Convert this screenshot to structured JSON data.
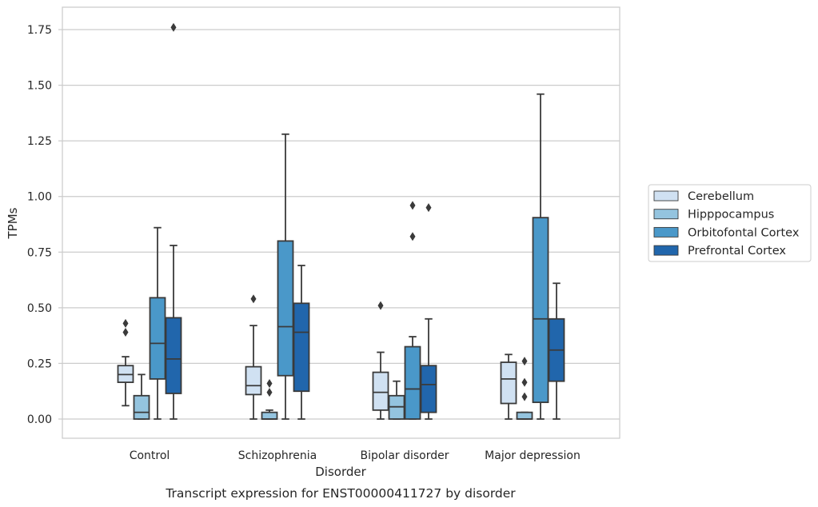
{
  "chart_data": {
    "type": "box",
    "title": "",
    "caption": "Transcript expression for ENST00000411727 by disorder",
    "xlabel": "Disorder",
    "ylabel": "TPMs",
    "ylim": [
      -0.085,
      1.85
    ],
    "yticks": [
      0.0,
      0.25,
      0.5,
      0.75,
      1.0,
      1.25,
      1.5,
      1.75
    ],
    "ytick_labels": [
      "0.00",
      "0.25",
      "0.50",
      "0.75",
      "1.00",
      "1.25",
      "1.50",
      "1.75"
    ],
    "grid": "horizontal",
    "legend_position": "right",
    "categories": [
      "Control",
      "Schizophrenia",
      "Bipolar disorder",
      "Major depression"
    ],
    "series": [
      {
        "name": "Cerebellum",
        "color": "#d0e1f2",
        "boxes": [
          {
            "whislo": 0.06,
            "q1": 0.165,
            "med": 0.2,
            "q3": 0.24,
            "whishi": 0.28,
            "fliers": [
              0.39,
              0.43
            ]
          },
          {
            "whislo": 0.0,
            "q1": 0.11,
            "med": 0.15,
            "q3": 0.235,
            "whishi": 0.42,
            "fliers": [
              0.54
            ]
          },
          {
            "whislo": 0.0,
            "q1": 0.04,
            "med": 0.12,
            "q3": 0.21,
            "whishi": 0.3,
            "fliers": [
              0.51
            ]
          },
          {
            "whislo": 0.0,
            "q1": 0.07,
            "med": 0.18,
            "q3": 0.255,
            "whishi": 0.29,
            "fliers": []
          }
        ]
      },
      {
        "name": "Hipppocampus",
        "color": "#94c4df",
        "boxes": [
          {
            "whislo": 0.0,
            "q1": 0.0,
            "med": 0.03,
            "q3": 0.105,
            "whishi": 0.2,
            "fliers": []
          },
          {
            "whislo": 0.0,
            "q1": 0.0,
            "med": 0.0,
            "q3": 0.03,
            "whishi": 0.04,
            "fliers": [
              0.12,
              0.16
            ]
          },
          {
            "whislo": 0.0,
            "q1": 0.0,
            "med": 0.055,
            "q3": 0.105,
            "whishi": 0.17,
            "fliers": []
          },
          {
            "whislo": 0.0,
            "q1": 0.0,
            "med": 0.0,
            "q3": 0.03,
            "whishi": 0.03,
            "fliers": [
              0.1,
              0.165,
              0.26
            ]
          }
        ]
      },
      {
        "name": "Orbitofontal Cortex",
        "color": "#4a98c9",
        "boxes": [
          {
            "whislo": 0.0,
            "q1": 0.18,
            "med": 0.34,
            "q3": 0.545,
            "whishi": 0.86,
            "fliers": []
          },
          {
            "whislo": 0.0,
            "q1": 0.195,
            "med": 0.415,
            "q3": 0.8,
            "whishi": 1.28,
            "fliers": []
          },
          {
            "whislo": 0.0,
            "q1": 0.0,
            "med": 0.135,
            "q3": 0.325,
            "whishi": 0.37,
            "fliers": [
              0.82,
              0.96
            ]
          },
          {
            "whislo": 0.0,
            "q1": 0.075,
            "med": 0.45,
            "q3": 0.905,
            "whishi": 1.46,
            "fliers": []
          }
        ]
      },
      {
        "name": "Prefrontal Cortex",
        "color": "#2166ac",
        "boxes": [
          {
            "whislo": 0.0,
            "q1": 0.115,
            "med": 0.27,
            "q3": 0.455,
            "whishi": 0.78,
            "fliers": [
              1.76
            ]
          },
          {
            "whislo": 0.0,
            "q1": 0.125,
            "med": 0.39,
            "q3": 0.52,
            "whishi": 0.69,
            "fliers": []
          },
          {
            "whislo": 0.0,
            "q1": 0.03,
            "med": 0.155,
            "q3": 0.24,
            "whishi": 0.45,
            "fliers": [
              0.95
            ]
          },
          {
            "whislo": 0.0,
            "q1": 0.17,
            "med": 0.31,
            "q3": 0.45,
            "whishi": 0.61,
            "fliers": []
          }
        ]
      }
    ]
  }
}
